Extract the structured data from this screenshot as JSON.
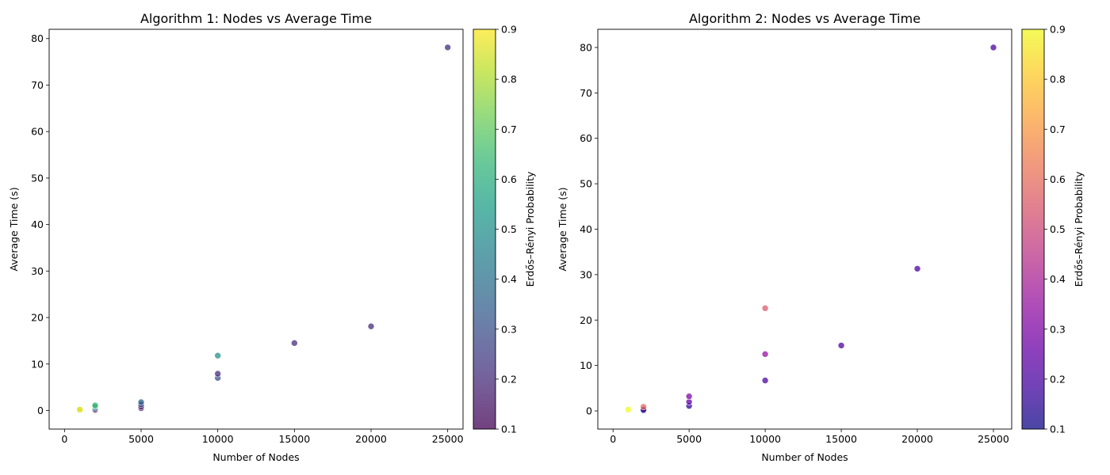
{
  "chart_data": [
    {
      "type": "scatter",
      "title": "Algorithm 1: Nodes vs Average Time",
      "xlabel": "Number of Nodes",
      "ylabel": "Average Time (s)",
      "xlim": [
        -1000,
        26000
      ],
      "ylim": [
        -4,
        82
      ],
      "xticks": [
        0,
        5000,
        10000,
        15000,
        20000,
        25000
      ],
      "yticks": [
        0,
        10,
        20,
        30,
        40,
        50,
        60,
        70,
        80
      ],
      "colormap": "viridis",
      "colorbar": {
        "label": "Erdős–Rényi Probability",
        "range": [
          0.1,
          0.9
        ],
        "ticks": [
          0.1,
          0.2,
          0.3,
          0.4,
          0.5,
          0.6,
          0.7,
          0.8,
          0.9
        ]
      },
      "points": [
        {
          "x": 1000,
          "y": 0.1,
          "p": 0.9
        },
        {
          "x": 1000,
          "y": 0.2,
          "p": 0.85
        },
        {
          "x": 2000,
          "y": 0.1,
          "p": 0.1
        },
        {
          "x": 2000,
          "y": 0.3,
          "p": 0.2
        },
        {
          "x": 2000,
          "y": 0.6,
          "p": 0.5
        },
        {
          "x": 2000,
          "y": 0.9,
          "p": 0.6
        },
        {
          "x": 2000,
          "y": 1.1,
          "p": 0.65
        },
        {
          "x": 5000,
          "y": 0.5,
          "p": 0.2
        },
        {
          "x": 5000,
          "y": 0.9,
          "p": 0.1
        },
        {
          "x": 5000,
          "y": 1.3,
          "p": 0.3
        },
        {
          "x": 5000,
          "y": 1.8,
          "p": 0.35
        },
        {
          "x": 10000,
          "y": 7.0,
          "p": 0.3
        },
        {
          "x": 10000,
          "y": 7.9,
          "p": 0.2
        },
        {
          "x": 10000,
          "y": 11.8,
          "p": 0.5
        },
        {
          "x": 15000,
          "y": 14.5,
          "p": 0.2
        },
        {
          "x": 20000,
          "y": 18.1,
          "p": 0.2
        },
        {
          "x": 25000,
          "y": 78.1,
          "p": 0.2
        }
      ]
    },
    {
      "type": "scatter",
      "title": "Algorithm 2: Nodes vs Average Time",
      "xlabel": "Number of Nodes",
      "ylabel": "Average Time (s)",
      "xlim": [
        -1000,
        26200
      ],
      "ylim": [
        -4,
        84
      ],
      "xticks": [
        0,
        5000,
        10000,
        15000,
        20000,
        25000
      ],
      "yticks": [
        0,
        10,
        20,
        30,
        40,
        50,
        60,
        70,
        80
      ],
      "colormap": "plasma",
      "colorbar": {
        "label": "Erdős–Rényi Probability",
        "range": [
          0.1,
          0.9
        ],
        "ticks": [
          0.1,
          0.2,
          0.3,
          0.4,
          0.5,
          0.6,
          0.7,
          0.8,
          0.9
        ]
      },
      "points": [
        {
          "x": 1000,
          "y": 0.3,
          "p": 0.9
        },
        {
          "x": 2000,
          "y": 0.1,
          "p": 0.1
        },
        {
          "x": 2000,
          "y": 0.3,
          "p": 0.15
        },
        {
          "x": 2000,
          "y": 0.9,
          "p": 0.6
        },
        {
          "x": 5000,
          "y": 1.1,
          "p": 0.15
        },
        {
          "x": 5000,
          "y": 2.0,
          "p": 0.25
        },
        {
          "x": 5000,
          "y": 3.2,
          "p": 0.3
        },
        {
          "x": 10000,
          "y": 6.7,
          "p": 0.2
        },
        {
          "x": 10000,
          "y": 12.5,
          "p": 0.35
        },
        {
          "x": 10000,
          "y": 22.6,
          "p": 0.55
        },
        {
          "x": 15000,
          "y": 14.4,
          "p": 0.2
        },
        {
          "x": 20000,
          "y": 31.3,
          "p": 0.2
        },
        {
          "x": 25000,
          "y": 80.0,
          "p": 0.2
        }
      ]
    }
  ]
}
